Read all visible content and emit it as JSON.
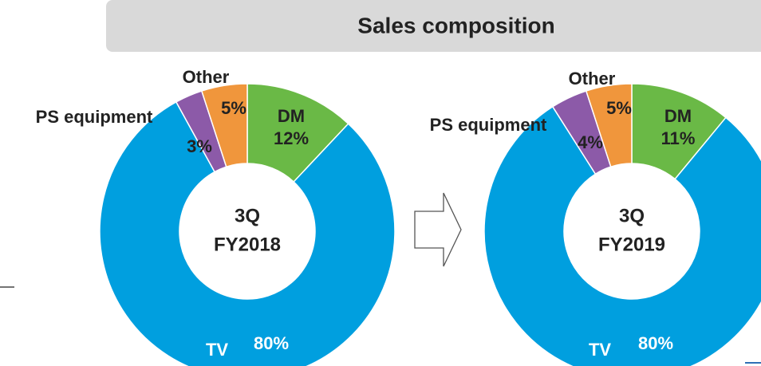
{
  "title": "Sales composition",
  "chart_data": [
    {
      "type": "pie",
      "center_label": [
        "3Q",
        "FY2018"
      ],
      "categories": [
        "DM",
        "TV",
        "PS equipment",
        "Other"
      ],
      "values": [
        12,
        80,
        3,
        5
      ],
      "value_labels": [
        "12%",
        "80%",
        "3%",
        "5%"
      ],
      "colors": [
        "#6ab946",
        "#009fdf",
        "#8c5aa8",
        "#f0963c"
      ]
    },
    {
      "type": "pie",
      "center_label": [
        "3Q",
        "FY2019"
      ],
      "categories": [
        "DM",
        "TV",
        "PS equipment",
        "Other"
      ],
      "values": [
        11,
        80,
        4,
        5
      ],
      "value_labels": [
        "11%",
        "80%",
        "4%",
        "5%"
      ],
      "colors": [
        "#6ab946",
        "#009fdf",
        "#8c5aa8",
        "#f0963c"
      ]
    }
  ]
}
